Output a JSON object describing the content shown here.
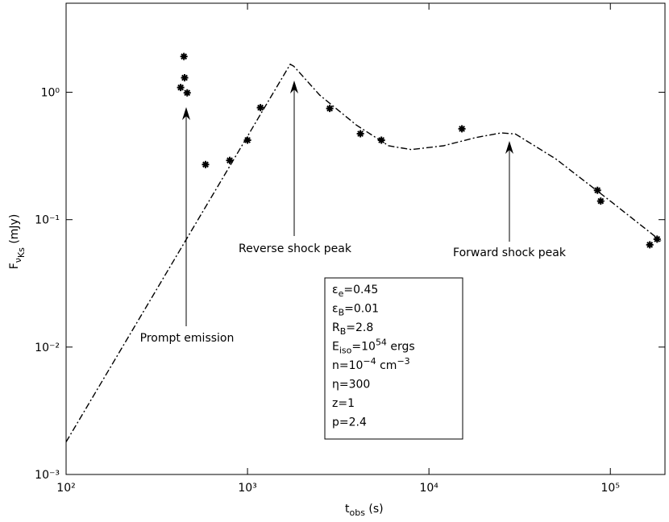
{
  "chart_data": {
    "type": "line",
    "xlog": true,
    "ylog": true,
    "xlim": [
      100,
      200000
    ],
    "ylim": [
      0.001,
      5
    ],
    "xticks": [
      {
        "value": 100,
        "label": "10²"
      },
      {
        "value": 1000,
        "label": "10³"
      },
      {
        "value": 10000,
        "label": "10⁴"
      },
      {
        "value": 100000,
        "label": "10⁵"
      }
    ],
    "yticks": [
      {
        "value": 0.001,
        "label": "10⁻³"
      },
      {
        "value": 0.01,
        "label": "10⁻²"
      },
      {
        "value": 0.1,
        "label": "10⁻¹"
      },
      {
        "value": 1,
        "label": "10⁰"
      }
    ],
    "xlabel": [
      {
        "text": "t"
      },
      {
        "sub": "obs"
      },
      {
        "text": " (s)"
      }
    ],
    "ylabel": [
      {
        "text": "F"
      },
      {
        "sub": "ν"
      },
      {
        "sub2": "Ks"
      },
      {
        "text": "  (mJy)"
      }
    ],
    "series": [
      {
        "style": "dashdot",
        "color": "#000000",
        "x": [
          100,
          1720,
          1800,
          2500,
          4000,
          6000,
          8000,
          12000,
          18000,
          25000,
          30000,
          50000,
          100000,
          190000
        ],
        "values": [
          0.0018,
          1.66,
          1.6,
          0.95,
          0.55,
          0.38,
          0.355,
          0.38,
          0.44,
          0.48,
          0.47,
          0.3,
          0.14,
          0.068
        ]
      },
      {
        "style": "asterisk",
        "color": "#000000",
        "x": [
          446,
          450,
          428,
          465,
          587,
          798,
          1000,
          1178,
          2840,
          4190,
          5470,
          15200,
          84900,
          88500,
          165000,
          181000
        ],
        "values": [
          1.91,
          1.3,
          1.09,
          0.99,
          0.271,
          0.292,
          0.421,
          0.757,
          0.746,
          0.473,
          0.421,
          0.517,
          0.17,
          0.14,
          0.0635,
          0.0703
        ]
      }
    ],
    "annotations": [
      "Prompt emission",
      "Reverse shock peak",
      "Forward shock peak"
    ],
    "parameters": [
      [
        {
          "text": "ε"
        },
        {
          "sub": "e"
        },
        {
          "text": "=0.45"
        }
      ],
      [
        {
          "text": "ε"
        },
        {
          "sub": "B"
        },
        {
          "text": "=0.01"
        }
      ],
      [
        {
          "text": "R"
        },
        {
          "sub": "B"
        },
        {
          "text": "=2.8"
        }
      ],
      [
        {
          "text": "E"
        },
        {
          "sub": "iso"
        },
        {
          "text": "=10"
        },
        {
          "sup": "54"
        },
        {
          "text": " ergs"
        }
      ],
      [
        {
          "text": "n=10"
        },
        {
          "sup": "−4"
        },
        {
          "text": " cm"
        },
        {
          "sup": "−3"
        }
      ],
      [
        {
          "text": "η=300"
        }
      ],
      [
        {
          "text": "z=1"
        }
      ],
      [
        {
          "text": "p=2.4"
        }
      ]
    ]
  }
}
